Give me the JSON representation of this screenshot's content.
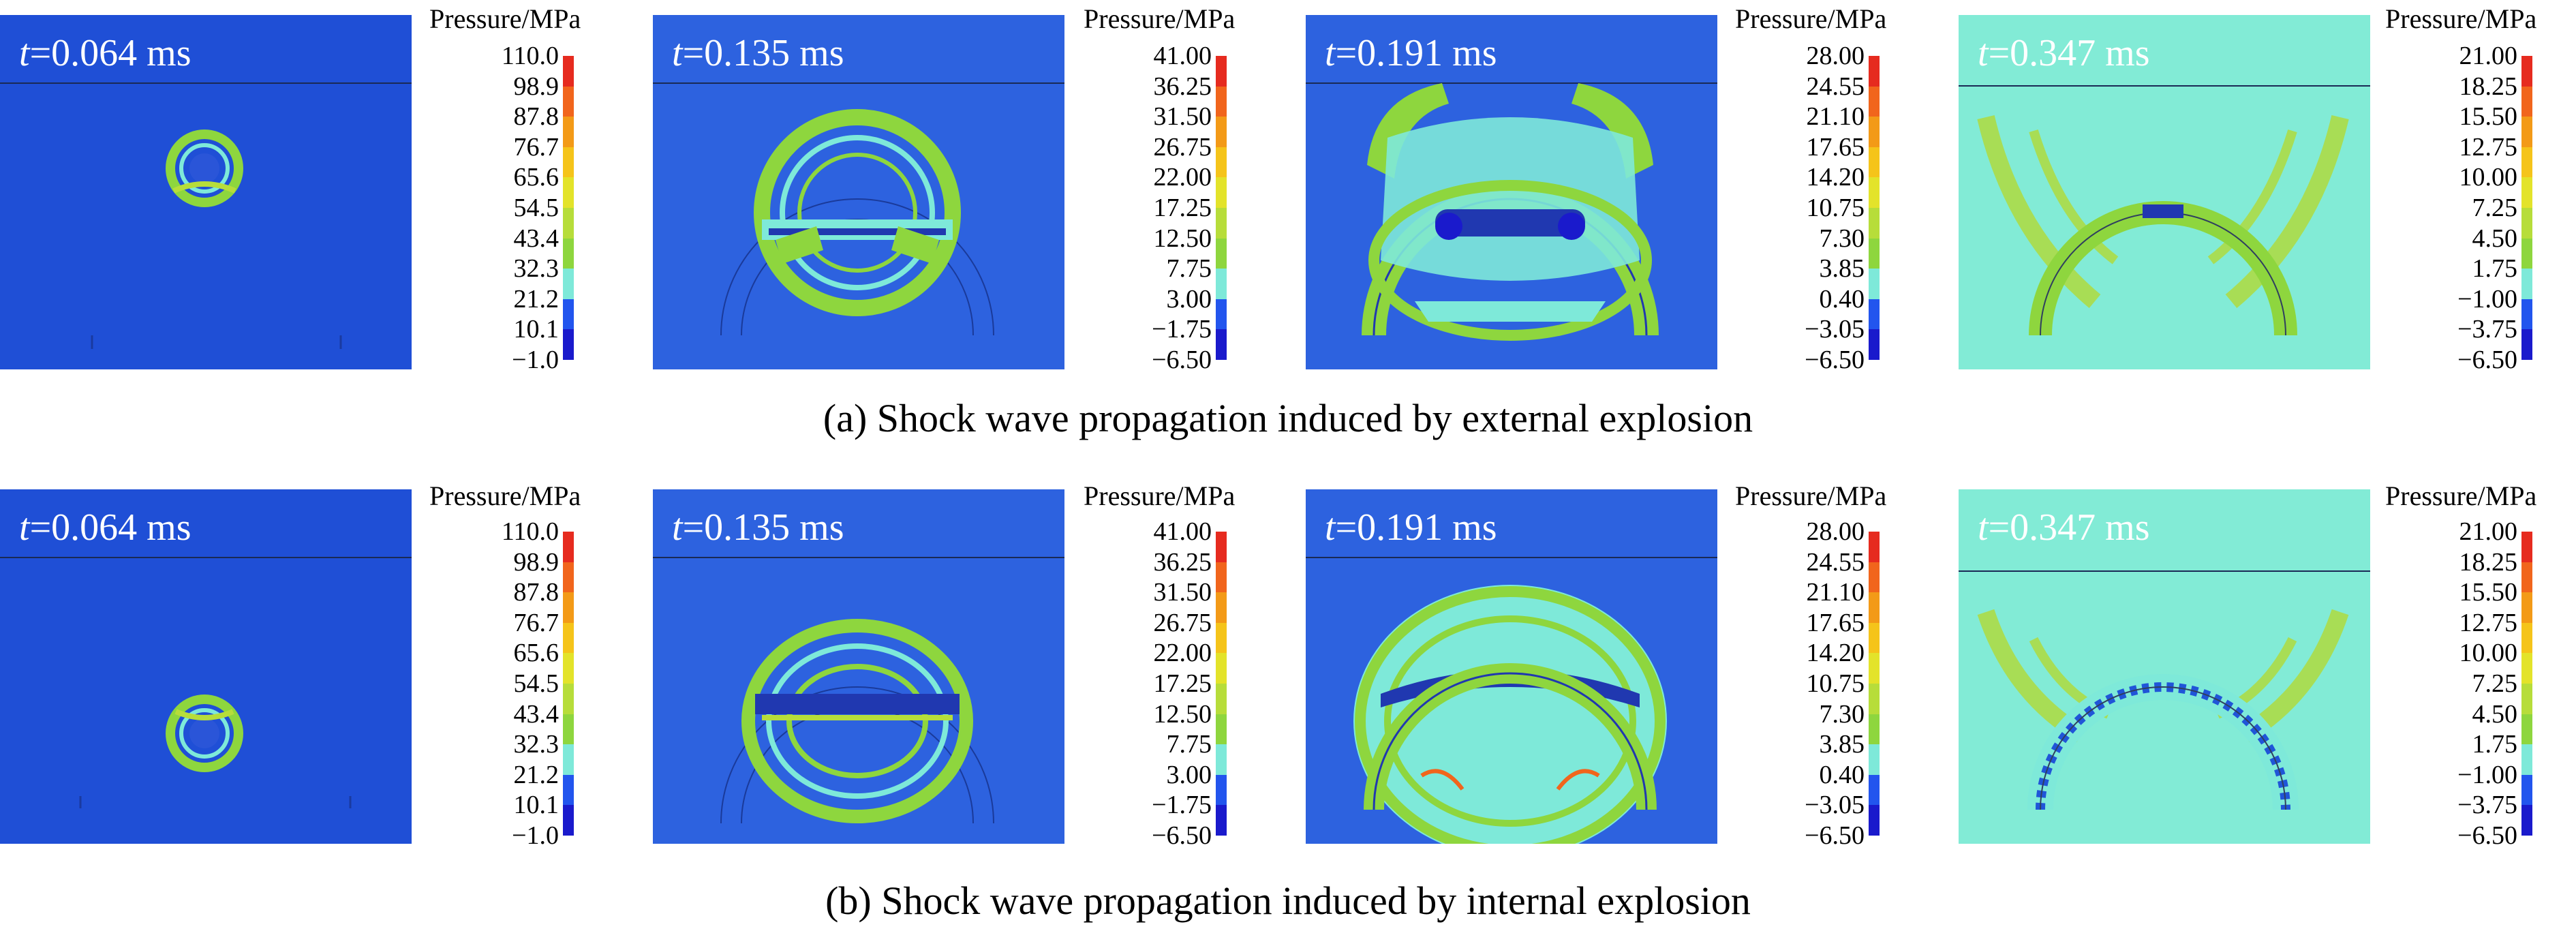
{
  "figure": {
    "colorbar_title": "Pressure/MPa",
    "colors": [
      "#1a1acc",
      "#2255ee",
      "#7ee9d9",
      "#8ed63e",
      "#b7dd3a",
      "#e3e32a",
      "#f5c41a",
      "#f39a17",
      "#f1651c",
      "#e62b1f"
    ],
    "rows": [
      {
        "caption": "(a) Shock wave propagation induced by external explosion",
        "panels": [
          {
            "time_var": "t",
            "time_value": "=0.064 ms",
            "background": "#1f4fd6",
            "ticks": [
              "110.0",
              "98.9",
              "87.8",
              "76.7",
              "65.6",
              "54.5",
              "43.4",
              "32.3",
              "21.2",
              "10.1",
              "−1.0"
            ]
          },
          {
            "time_var": "t",
            "time_value": "=0.135 ms",
            "background": "#2d62df",
            "ticks": [
              "41.00",
              "36.25",
              "31.50",
              "26.75",
              "22.00",
              "17.25",
              "12.50",
              "7.75",
              "3.00",
              "−1.75",
              "−6.50"
            ]
          },
          {
            "time_var": "t",
            "time_value": "=0.191 ms",
            "background": "#2d62df",
            "ticks": [
              "28.00",
              "24.55",
              "21.10",
              "17.65",
              "14.20",
              "10.75",
              "7.30",
              "3.85",
              "0.40",
              "−3.05",
              "−6.50"
            ]
          },
          {
            "time_var": "t",
            "time_value": "=0.347 ms",
            "background": "#82ebd6",
            "ticks": [
              "21.00",
              "18.25",
              "15.50",
              "12.75",
              "10.00",
              "7.25",
              "4.50",
              "1.75",
              "−1.00",
              "−3.75",
              "−6.50"
            ]
          }
        ]
      },
      {
        "caption": "(b) Shock wave propagation induced by internal explosion",
        "panels": [
          {
            "time_var": "t",
            "time_value": "=0.064 ms",
            "background": "#1f4fd6",
            "ticks": [
              "110.0",
              "98.9",
              "87.8",
              "76.7",
              "65.6",
              "54.5",
              "43.4",
              "32.3",
              "21.2",
              "10.1",
              "−1.0"
            ]
          },
          {
            "time_var": "t",
            "time_value": "=0.135 ms",
            "background": "#2d62df",
            "ticks": [
              "41.00",
              "36.25",
              "31.50",
              "26.75",
              "22.00",
              "17.25",
              "12.50",
              "7.75",
              "3.00",
              "−1.75",
              "−6.50"
            ]
          },
          {
            "time_var": "t",
            "time_value": "=0.191 ms",
            "background": "#2d62df",
            "ticks": [
              "28.00",
              "24.55",
              "21.10",
              "17.65",
              "14.20",
              "10.75",
              "7.30",
              "3.85",
              "0.40",
              "−3.05",
              "−6.50"
            ]
          },
          {
            "time_var": "t",
            "time_value": "=0.347 ms",
            "background": "#82ebd6",
            "ticks": [
              "21.00",
              "18.25",
              "15.50",
              "12.75",
              "10.00",
              "7.25",
              "4.50",
              "1.75",
              "−1.00",
              "−3.75",
              "−6.50"
            ]
          }
        ]
      }
    ]
  }
}
